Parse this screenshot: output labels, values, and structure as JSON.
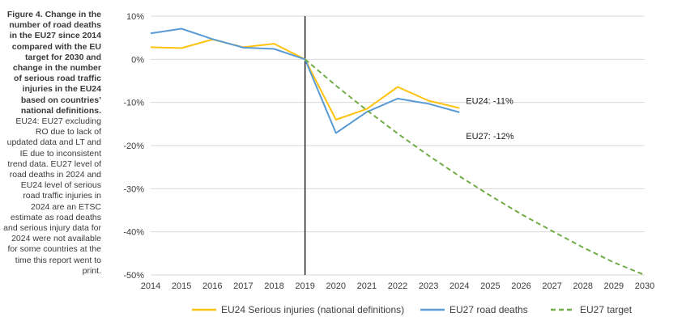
{
  "caption": {
    "title": "Figure 4. Change in the number of road deaths in the EU27 since 2014 compared with the EU target for 2030 and change in the number of serious road traffic injuries in the EU24 based on countries’ national definitions.",
    "note": "EU24: EU27 excluding RO due to lack of updated data and LT and IE due to inconsistent trend data. EU27 level of road deaths in 2024 and EU24 level of serious road traffic injuries in 2024 are an ETSC estimate as road deaths and serious injury data for 2024 were not available for some countries at the time this report went to print."
  },
  "chart_data": {
    "type": "line",
    "x": [
      2014,
      2015,
      2016,
      2017,
      2018,
      2019,
      2020,
      2021,
      2022,
      2023,
      2024,
      2025,
      2026,
      2027,
      2028,
      2029,
      2030
    ],
    "x_tick_labels": [
      "2014",
      "2015",
      "2016",
      "2017",
      "2018",
      "2019",
      "2020",
      "2021",
      "2022",
      "2023",
      "2024",
      "2025",
      "2026",
      "2027",
      "2028",
      "2029",
      "2030"
    ],
    "y_ticks": [
      10,
      0,
      -10,
      -20,
      -30,
      -40,
      -50
    ],
    "y_tick_labels": [
      "10%",
      "0%",
      "-10%",
      "-20%",
      "-30%",
      "-40%",
      "-50%"
    ],
    "ylim": [
      -50,
      10
    ],
    "xlim": [
      2014,
      2030
    ],
    "grid": "horizontal",
    "reference_line_x": 2019,
    "legend_position": "bottom",
    "series": [
      {
        "name": "EU24 Serious injuries (national definitions)",
        "color": "#FFC20E",
        "style": "solid",
        "x": [
          2014,
          2015,
          2016,
          2017,
          2018,
          2019,
          2020,
          2021,
          2022,
          2023,
          2024
        ],
        "values": [
          2.8,
          2.6,
          4.6,
          2.8,
          3.6,
          0,
          -14.0,
          -11.5,
          -6.4,
          -9.6,
          -11.3
        ]
      },
      {
        "name": "EU27 road deaths",
        "color": "#5B9BD5",
        "style": "solid",
        "x": [
          2014,
          2015,
          2016,
          2017,
          2018,
          2019,
          2020,
          2021,
          2022,
          2023,
          2024
        ],
        "values": [
          6.0,
          7.1,
          4.7,
          2.7,
          2.4,
          0,
          -17.1,
          -12.2,
          -9.1,
          -10.3,
          -12.3
        ]
      },
      {
        "name": "EU27 target",
        "color": "#70AD47",
        "style": "dashed",
        "x": [
          2019,
          2020,
          2021,
          2022,
          2023,
          2024,
          2025,
          2026,
          2027,
          2028,
          2029,
          2030
        ],
        "values": [
          0,
          -6.1,
          -11.8,
          -17.2,
          -22.3,
          -27.1,
          -31.6,
          -35.9,
          -39.8,
          -43.6,
          -47.1,
          -50.0
        ]
      }
    ],
    "annotations": [
      {
        "text": "EU24: -11%",
        "x": 2024,
        "y": -11.3
      },
      {
        "text": "EU27: -12%",
        "x": 2024,
        "y": -12.3
      }
    ]
  }
}
